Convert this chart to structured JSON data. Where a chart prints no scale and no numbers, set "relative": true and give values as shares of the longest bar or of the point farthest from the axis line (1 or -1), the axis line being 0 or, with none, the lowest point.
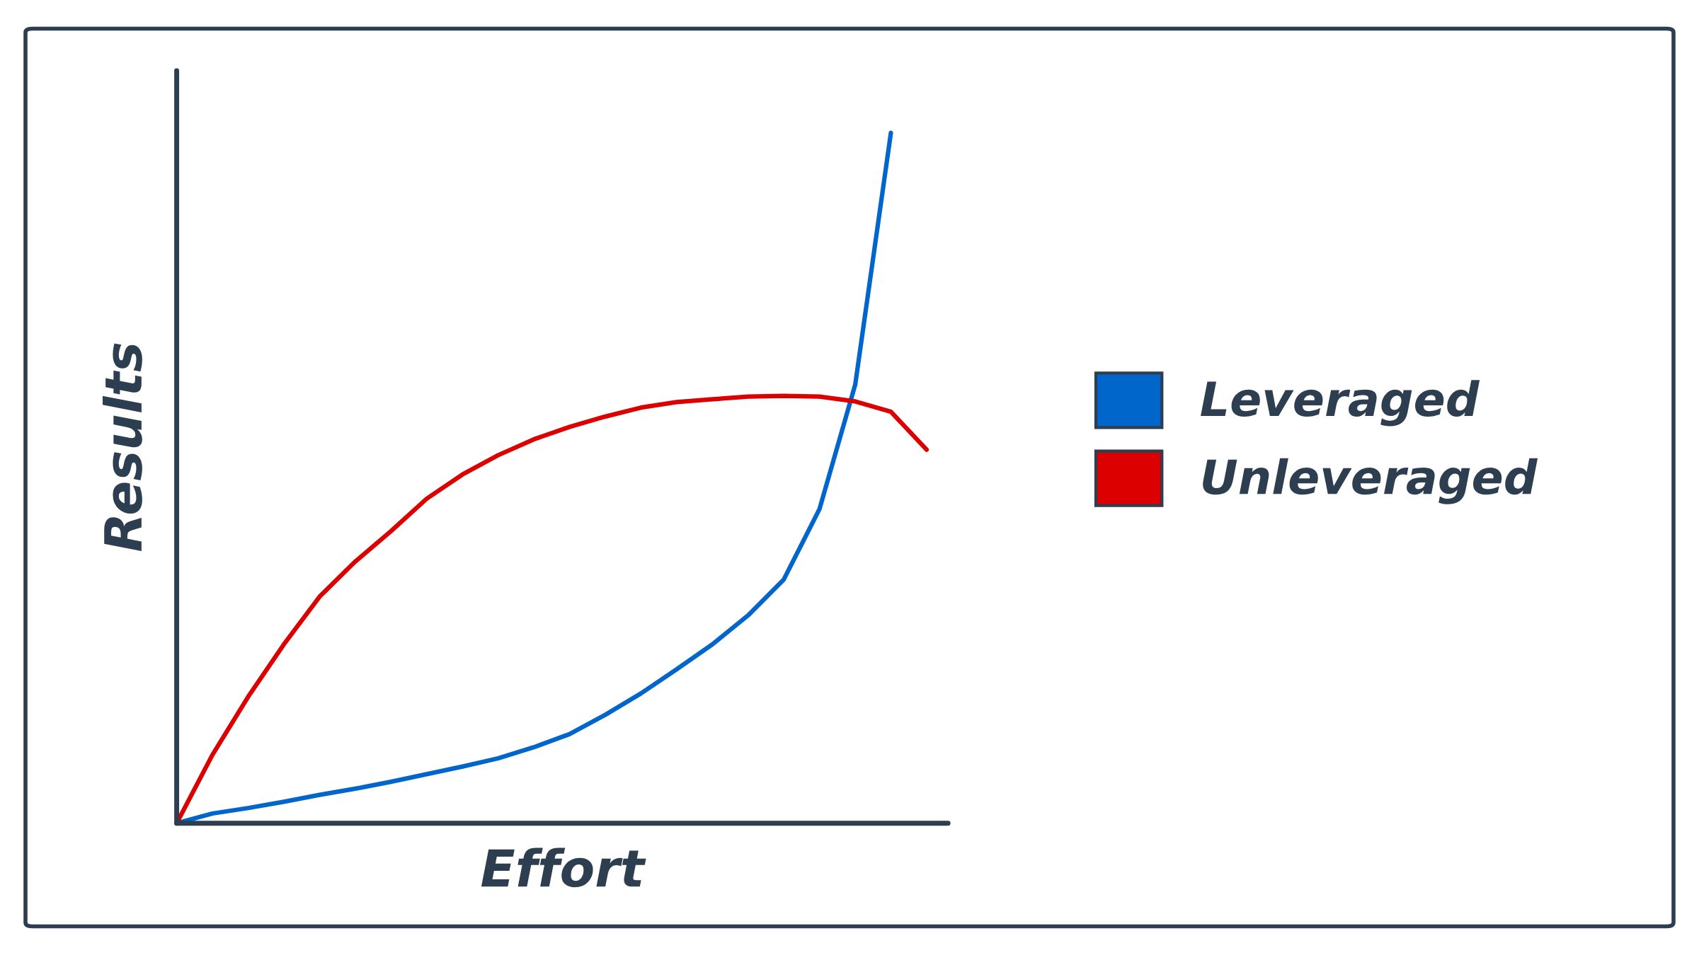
{
  "chart_data": {
    "type": "line",
    "relative": true,
    "xlabel": "Effort",
    "ylabel": "Results",
    "categories": [
      null,
      null,
      null,
      null,
      null,
      null,
      null,
      null,
      null,
      null,
      null,
      null,
      null,
      null,
      null,
      null,
      null,
      null,
      null,
      null,
      null,
      null
    ],
    "series": [
      {
        "name": "Leveraged",
        "color": "#0066cc",
        "values": [
          0,
          0.014,
          0.022,
          0.031,
          0.041,
          0.05,
          0.06,
          0.071,
          0.082,
          0.094,
          0.11,
          0.129,
          0.157,
          0.188,
          0.223,
          0.259,
          0.301,
          0.353,
          0.455,
          0.635,
          1,
          null
        ]
      },
      {
        "name": "Unleveraged",
        "color": "#dd0000",
        "values": [
          0,
          0.099,
          0.183,
          0.259,
          0.328,
          0.379,
          0.423,
          0.47,
          0.505,
          0.533,
          0.556,
          0.574,
          0.589,
          0.602,
          0.61,
          0.614,
          0.618,
          0.619,
          0.618,
          0.611,
          0.596,
          0.541
        ]
      }
    ],
    "legend": "right"
  }
}
